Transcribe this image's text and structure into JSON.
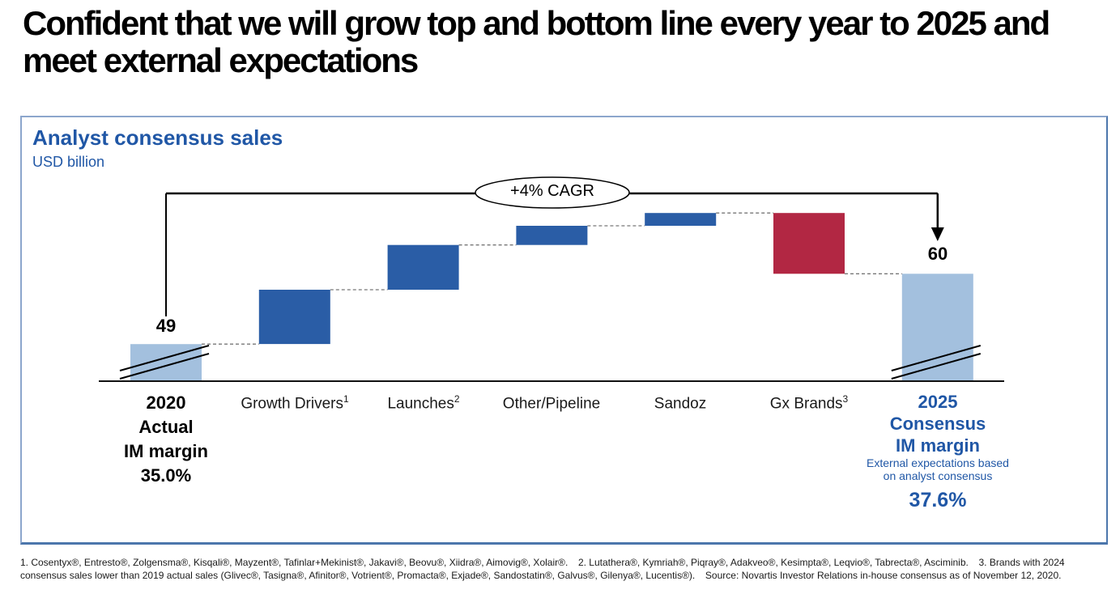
{
  "slide": {
    "title": "Confident that we will grow top and bottom line every year to 2025 and meet external expectations"
  },
  "chart_data": {
    "type": "waterfall",
    "title": "Analyst consensus sales",
    "subtitle": "USD billion",
    "unit": "USD billion",
    "annotation": "+4% CAGR",
    "start_value": 49,
    "end_value": 60,
    "axis_break": true,
    "legend": "none",
    "colors": {
      "increase": "#2A5DA6",
      "decrease": "#B22743",
      "total": "#A3C0DE",
      "connector": "#777777",
      "accent_text": "#2057A6"
    },
    "columns": [
      {
        "label": "2020",
        "role": "total",
        "value": 49,
        "display_value": "49",
        "sublabel_lines": [
          "Actual",
          "IM margin",
          "35.0%"
        ]
      },
      {
        "label": "Growth Drivers",
        "sup": "1",
        "role": "increase",
        "delta": 8.5
      },
      {
        "label": "Launches",
        "sup": "2",
        "role": "increase",
        "delta": 7
      },
      {
        "label": "Other/Pipeline",
        "role": "increase",
        "delta": 3
      },
      {
        "label": "Sandoz",
        "role": "increase",
        "delta": 2
      },
      {
        "label": "Gx Brands",
        "sup": "3",
        "role": "decrease",
        "delta": -9.5
      },
      {
        "label": "2025",
        "role": "total",
        "value": 60,
        "display_value": "60",
        "sublabel_lines": [
          "Consensus",
          "IM margin"
        ],
        "note_lines": [
          "External expectations based",
          "on analyst consensus"
        ],
        "highlight_value": "37.6%"
      }
    ]
  },
  "footnotes": {
    "text": "1. Cosentyx®, Entresto®, Zolgensma®, Kisqali®, Mayzent®, Tafinlar+Mekinist®, Jakavi®, Beovu®, Xiidra®, Aimovig®, Xolair®.   2. Lutathera®, Kymriah®, Piqray®, Adakveo®, Kesimpta®, Leqvio®, Tabrecta®, Asciminib.   3. Brands with 2024 consensus sales lower than 2019 actual sales (Glivec®, Tasigna®, Afinitor®, Votrient®, Promacta®, Exjade®, Sandostatin®, Galvus®, Gilenya®, Lucentis®).   Source: Novartis Investor Relations in-house consensus as of November 12, 2020."
  }
}
